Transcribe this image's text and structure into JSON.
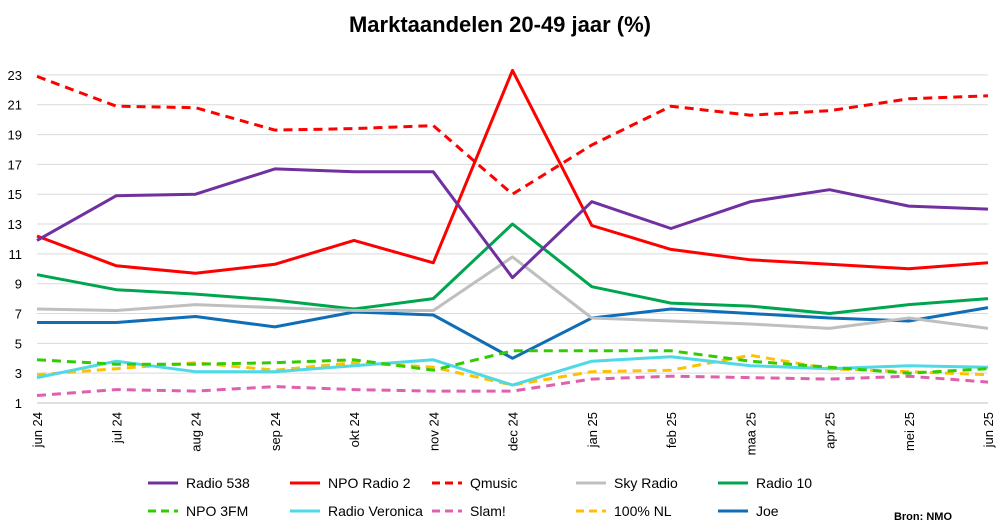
{
  "chart_data": {
    "type": "line",
    "title": "Marktaandelen 20-49 jaar (%)",
    "source": "Bron: NMO",
    "categories": [
      "jun 24",
      "jul 24",
      "aug 24",
      "sep 24",
      "okt 24",
      "nov 24",
      "dec 24",
      "jan 25",
      "feb 25",
      "maa 25",
      "apr 25",
      "mei 25",
      "jun 25"
    ],
    "ylim": [
      1,
      24
    ],
    "yticks": [
      1,
      3,
      5,
      7,
      9,
      11,
      13,
      15,
      17,
      19,
      21,
      23
    ],
    "grid": true,
    "legend_position": "bottom",
    "series": [
      {
        "name": "Radio 538",
        "color": "#7030A0",
        "dash": "solid",
        "values": [
          11.9,
          14.9,
          15.0,
          16.7,
          16.5,
          16.5,
          9.4,
          14.5,
          12.7,
          14.5,
          15.3,
          14.2,
          14.0
        ]
      },
      {
        "name": "NPO Radio 2",
        "color": "#FF0000",
        "dash": "solid",
        "values": [
          12.2,
          10.2,
          9.7,
          10.3,
          11.9,
          10.4,
          23.3,
          12.9,
          11.3,
          10.6,
          10.3,
          10.0,
          10.4
        ]
      },
      {
        "name": "Qmusic",
        "color": "#FF0000",
        "dash": "dashed",
        "values": [
          22.9,
          20.9,
          20.8,
          19.3,
          19.4,
          19.6,
          15.0,
          18.3,
          20.9,
          20.3,
          20.6,
          21.4,
          21.6
        ]
      },
      {
        "name": "Sky Radio",
        "color": "#BFBFBF",
        "dash": "solid",
        "values": [
          7.3,
          7.2,
          7.6,
          7.4,
          7.2,
          7.2,
          10.8,
          6.7,
          6.5,
          6.3,
          6.0,
          6.7,
          6.0
        ]
      },
      {
        "name": "Radio 10",
        "color": "#00A550",
        "dash": "solid",
        "values": [
          9.6,
          8.6,
          8.3,
          7.9,
          7.3,
          8.0,
          13.0,
          8.8,
          7.7,
          7.5,
          7.0,
          7.6,
          8.0
        ]
      },
      {
        "name": "NPO 3FM",
        "color": "#33CC00",
        "dash": "dashed",
        "values": [
          3.9,
          3.6,
          3.6,
          3.7,
          3.9,
          3.2,
          4.5,
          4.5,
          4.5,
          3.8,
          3.4,
          3.0,
          3.3
        ]
      },
      {
        "name": "Radio Veronica",
        "color": "#4DD9E6",
        "dash": "solid",
        "values": [
          2.7,
          3.8,
          3.1,
          3.1,
          3.5,
          3.9,
          2.2,
          3.8,
          4.1,
          3.5,
          3.3,
          3.5,
          3.4
        ]
      },
      {
        "name": "Slam!",
        "color": "#E060B0",
        "dash": "dashed",
        "values": [
          1.5,
          1.9,
          1.8,
          2.1,
          1.9,
          1.8,
          1.8,
          2.6,
          2.8,
          2.7,
          2.6,
          2.8,
          2.4
        ]
      },
      {
        "name": "100% NL",
        "color": "#FFC000",
        "dash": "dashed",
        "values": [
          2.9,
          3.3,
          3.7,
          3.2,
          3.7,
          3.4,
          2.2,
          3.1,
          3.2,
          4.2,
          3.3,
          3.1,
          2.9
        ]
      },
      {
        "name": "Joe",
        "color": "#0F6EB5",
        "dash": "solid",
        "values": [
          6.4,
          6.4,
          6.8,
          6.1,
          7.1,
          6.9,
          4.0,
          6.7,
          7.3,
          7.0,
          6.7,
          6.5,
          7.4
        ]
      }
    ]
  }
}
